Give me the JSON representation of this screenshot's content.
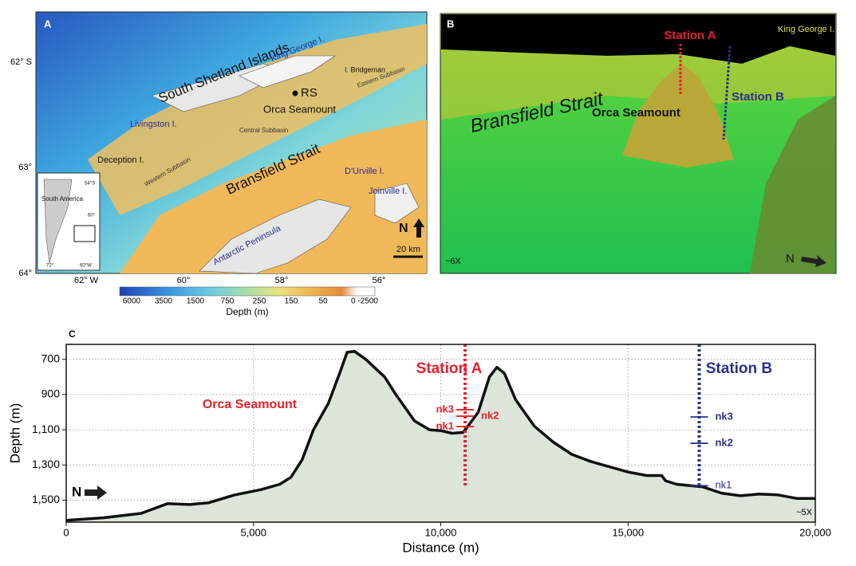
{
  "panel_a": {
    "letter": "A",
    "lat_labels": [
      "62° S",
      "63°",
      "64°"
    ],
    "lon_labels": [
      "62° W",
      "60°",
      "58°",
      "56°"
    ],
    "colorbar_labels": [
      "6000",
      "3500",
      "1500",
      "750",
      "250",
      "150",
      "50",
      "0 -2500"
    ],
    "colorbar_title": "Depth (m)",
    "labels": [
      "South Shetland Islands",
      "King George I.",
      "I. Bridgeman",
      "Eastern Subbasin",
      "RS",
      "Orca Seamount",
      "Livingston I.",
      "Central Subbasin",
      "Deception I.",
      "Western Subbasin",
      "Bransfield Strait",
      "D'Urville I.",
      "Joinville I.",
      "Antarctic Peninsula",
      "N",
      "20 km"
    ],
    "inset": {
      "label": "South America",
      "ticks": [
        "54°S",
        "60°",
        "72°",
        "60°W"
      ]
    }
  },
  "panel_b": {
    "letter": "B",
    "labels": [
      "Station A",
      "King George I.",
      "Bransfield Strait",
      "Orca Seamount",
      "Station B",
      "~6X",
      "N"
    ]
  },
  "chart_data": {
    "type": "line",
    "panel_letter": "C",
    "x_label": "Distance (m)",
    "y_label": "Depth (m)",
    "invert_y": true,
    "grid": true,
    "color": "#111111",
    "fill": "#dde4d9",
    "x": [
      0,
      1000,
      2000,
      2700,
      3300,
      3800,
      4500,
      5200,
      5700,
      6000,
      6300,
      6600,
      7000,
      7300,
      7500,
      7700,
      8000,
      8500,
      8800,
      9300,
      9700,
      10000,
      10300,
      10600,
      11000,
      11300,
      11500,
      11700,
      12000,
      12500,
      13000,
      13500,
      14000,
      14500,
      15000,
      15500,
      15900,
      16000,
      16300,
      17000,
      17500,
      18000,
      18500,
      19000,
      19500,
      20000
    ],
    "values": [
      1615,
      1600,
      1575,
      1520,
      1525,
      1515,
      1470,
      1440,
      1410,
      1370,
      1270,
      1100,
      950,
      780,
      660,
      655,
      700,
      800,
      900,
      1050,
      1100,
      1105,
      1120,
      1115,
      1000,
      800,
      745,
      780,
      930,
      1080,
      1170,
      1240,
      1280,
      1310,
      1340,
      1360,
      1360,
      1390,
      1410,
      1425,
      1460,
      1475,
      1465,
      1470,
      1490,
      1490
    ],
    "xlim": [
      0,
      20000
    ],
    "ylim": [
      615,
      1625
    ],
    "xticks": [
      0,
      {
        "value": 5000,
        "label": "5,000"
      },
      {
        "value": 10000,
        "label": "10,000"
      },
      {
        "value": 15000,
        "label": "15,000"
      },
      {
        "value": 20000,
        "label": "20,000"
      }
    ],
    "yticks": [
      700,
      900,
      {
        "value": 1100,
        "label": "1,100"
      },
      {
        "value": 1300,
        "label": "1,300"
      },
      {
        "value": 1500,
        "label": "1,500"
      }
    ],
    "stations": [
      {
        "label": "Station A",
        "x": 10650,
        "color": "#e8202a",
        "samples": [
          {
            "label": "nk3",
            "depth": 986
          },
          {
            "label": "nk2",
            "depth": 1023
          },
          {
            "label": "nk1",
            "depth": 1082
          }
        ]
      },
      {
        "label": "Station B",
        "x": 16900,
        "color": "#2b2f8f",
        "samples": [
          {
            "label": "nk3",
            "depth": 1027
          },
          {
            "label": "nk2",
            "depth": 1177
          },
          {
            "label": "nk1",
            "depth": 1418
          }
        ]
      }
    ],
    "annotations": [
      "Orca Seamount",
      "N",
      "~5X"
    ]
  }
}
